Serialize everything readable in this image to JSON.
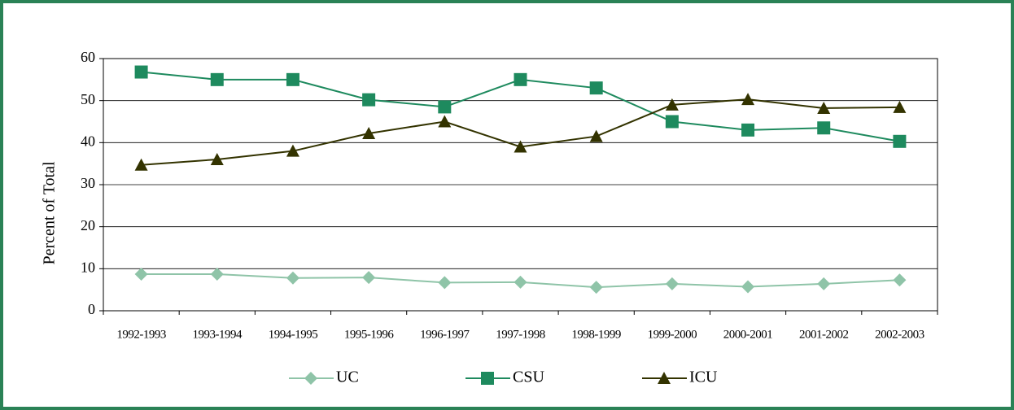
{
  "chart_data": {
    "type": "line",
    "y_label": "Percent of Total",
    "categories": [
      "1992-1993",
      "1993-1994",
      "1994-1995",
      "1995-1996",
      "1996-1997",
      "1997-1998",
      "1998-1999",
      "1999-2000",
      "2000-2001",
      "2001-2002",
      "2002-2003"
    ],
    "series": [
      {
        "name": "UC",
        "color": "#8fc4a8",
        "marker": "diamond",
        "values": [
          8.7,
          8.7,
          7.8,
          7.9,
          6.7,
          6.8,
          5.6,
          6.4,
          5.7,
          6.4,
          7.3
        ]
      },
      {
        "name": "CSU",
        "color": "#1e8a5e",
        "marker": "square",
        "values": [
          56.8,
          55,
          55,
          50.2,
          48.5,
          55,
          53,
          45,
          43,
          43.5,
          40.3
        ]
      },
      {
        "name": "ICU",
        "color": "#333300",
        "marker": "triangle",
        "values": [
          34.7,
          36,
          38,
          42.2,
          45,
          39,
          41.5,
          49,
          50.3,
          48.2,
          48.4
        ]
      }
    ],
    "ylim": [
      0,
      60
    ],
    "yticks": [
      0,
      10,
      20,
      30,
      40,
      50,
      60
    ],
    "grid": true
  }
}
